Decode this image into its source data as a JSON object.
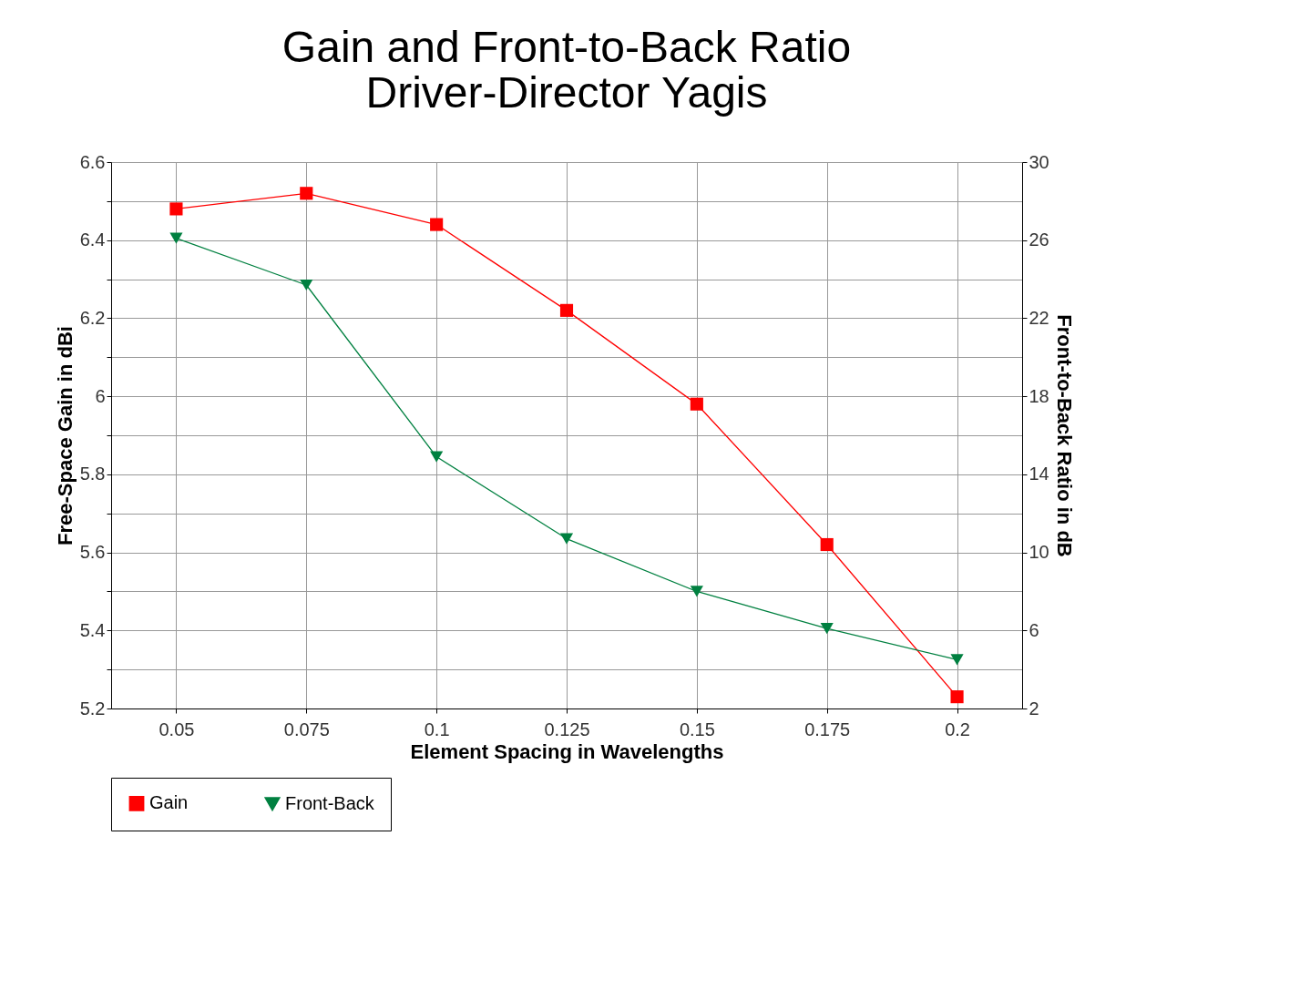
{
  "chart_data": {
    "type": "line",
    "title": [
      "Gain and Front-to-Back Ratio",
      "Driver-Director Yagis"
    ],
    "xlabel": "Element Spacing in Wavelengths",
    "ylabel": "Free-Space Gain in dBi",
    "y2label": "Front-to-Back Ratio in dB",
    "x": [
      0.05,
      0.075,
      0.1,
      0.125,
      0.15,
      0.175,
      0.2
    ],
    "xlim": [
      0.0375,
      0.2125
    ],
    "xticks": [
      0.05,
      0.075,
      0.1,
      0.125,
      0.15,
      0.175,
      0.2
    ],
    "ylim": [
      5.2,
      6.6
    ],
    "yticks": [
      5.2,
      {
        "value": 5.3,
        "label": null
      },
      5.4,
      {
        "value": 5.5,
        "label": null
      },
      5.6,
      {
        "value": 5.7,
        "label": null
      },
      5.8,
      {
        "value": 5.9,
        "label": null
      },
      6,
      {
        "value": 6.1,
        "label": null
      },
      6.2,
      {
        "value": 6.3,
        "label": null
      },
      6.4,
      {
        "value": 6.5,
        "label": null
      },
      6.6
    ],
    "y2lim": [
      2,
      30
    ],
    "y2ticks": [
      2,
      6,
      10,
      14,
      18,
      22,
      26,
      30
    ],
    "series": [
      {
        "name": "Gain",
        "color": "#ff0000",
        "marker": "square",
        "values": [
          6.48,
          6.52,
          6.44,
          6.22,
          5.98,
          5.62,
          5.23
        ]
      },
      {
        "name": "Front-Back",
        "color": "#008040",
        "marker": "triangle-down",
        "axis": "y2",
        "values": [
          26.1,
          23.7,
          14.9,
          10.7,
          8.0,
          6.1,
          4.5
        ]
      }
    ],
    "grid": true,
    "legend": "bottom"
  }
}
